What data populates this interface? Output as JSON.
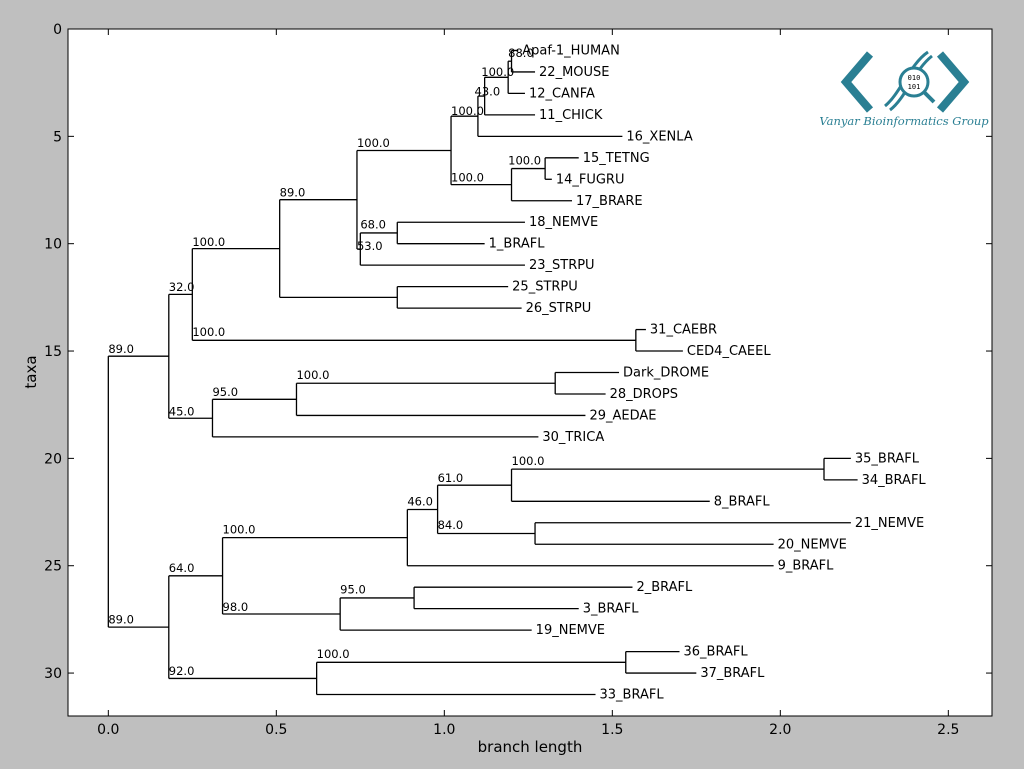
{
  "chart_data": {
    "type": "dendrogram",
    "xlabel": "branch length",
    "ylabel": "taxa",
    "xlim": [
      -0.12,
      2.63
    ],
    "ylim": [
      32,
      0
    ],
    "xticks": [
      "0.0",
      "0.5",
      "1.0",
      "1.5",
      "2.0",
      "2.5"
    ],
    "yticks": [
      "0",
      "5",
      "10",
      "15",
      "20",
      "25",
      "30"
    ],
    "xtick_values": [
      0,
      0.5,
      1.0,
      1.5,
      2.0,
      2.5
    ],
    "ytick_values": [
      0,
      5,
      10,
      15,
      20,
      25,
      30
    ],
    "leaves": [
      {
        "name": "Apaf-1_HUMAN",
        "x": 1.22,
        "y": 1
      },
      {
        "name": "22_MOUSE",
        "x": 1.27,
        "y": 2
      },
      {
        "name": "12_CANFA",
        "x": 1.24,
        "y": 3
      },
      {
        "name": "11_CHICK",
        "x": 1.27,
        "y": 4
      },
      {
        "name": "16_XENLA",
        "x": 1.53,
        "y": 5
      },
      {
        "name": "15_TETNG",
        "x": 1.4,
        "y": 6
      },
      {
        "name": "14_FUGRU",
        "x": 1.32,
        "y": 7
      },
      {
        "name": "17_BRARE",
        "x": 1.38,
        "y": 8
      },
      {
        "name": "18_NEMVE",
        "x": 1.24,
        "y": 9
      },
      {
        "name": "1_BRAFL",
        "x": 1.12,
        "y": 10
      },
      {
        "name": "23_STRPU",
        "x": 1.24,
        "y": 11
      },
      {
        "name": "25_STRPU",
        "x": 1.19,
        "y": 12
      },
      {
        "name": "26_STRPU",
        "x": 1.23,
        "y": 13
      },
      {
        "name": "31_CAEBR",
        "x": 1.6,
        "y": 14
      },
      {
        "name": "CED4_CAEEL",
        "x": 1.71,
        "y": 15
      },
      {
        "name": "Dark_DROME",
        "x": 1.52,
        "y": 16
      },
      {
        "name": "28_DROPS",
        "x": 1.48,
        "y": 17
      },
      {
        "name": "29_AEDAE",
        "x": 1.42,
        "y": 18
      },
      {
        "name": "30_TRICA",
        "x": 1.28,
        "y": 19
      },
      {
        "name": "35_BRAFL",
        "x": 2.21,
        "y": 20
      },
      {
        "name": "34_BRAFL",
        "x": 2.23,
        "y": 21
      },
      {
        "name": "8_BRAFL",
        "x": 1.79,
        "y": 22
      },
      {
        "name": "21_NEMVE",
        "x": 2.21,
        "y": 23
      },
      {
        "name": "20_NEMVE",
        "x": 1.98,
        "y": 24
      },
      {
        "name": "9_BRAFL",
        "x": 1.98,
        "y": 25
      },
      {
        "name": "2_BRAFL",
        "x": 1.56,
        "y": 26
      },
      {
        "name": "3_BRAFL",
        "x": 1.4,
        "y": 27
      },
      {
        "name": "19_NEMVE",
        "x": 1.26,
        "y": 28
      },
      {
        "name": "36_BRAFL",
        "x": 1.7,
        "y": 29
      },
      {
        "name": "37_BRAFL",
        "x": 1.75,
        "y": 30
      },
      {
        "name": "33_BRAFL",
        "x": 1.45,
        "y": 31
      }
    ],
    "nodes": [
      {
        "id": "n1",
        "x": 1.2,
        "y1": 1,
        "y2": 2,
        "label": "88.0",
        "lx": 1.19,
        "ly": 1.3
      },
      {
        "id": "n2",
        "x": 1.19,
        "y1": 1.5,
        "y2": 3,
        "label": "100.0",
        "lx": 1.11,
        "ly": 2.2
      },
      {
        "id": "n3",
        "x": 1.12,
        "y1": 2.25,
        "y2": 4,
        "label": "43.0",
        "lx": 1.09,
        "ly": 3.1
      },
      {
        "id": "n4",
        "x": 1.1,
        "y1": 3.125,
        "y2": 5,
        "label": "100.0",
        "lx": 1.02,
        "ly": 4.0
      },
      {
        "id": "n5",
        "x": 1.3,
        "y1": 6,
        "y2": 7,
        "label": "",
        "lx": 0,
        "ly": 0
      },
      {
        "id": "n6",
        "x": 1.2,
        "y1": 6.5,
        "y2": 8,
        "label": "100.0",
        "lx": 1.19,
        "ly": 6.3
      },
      {
        "id": "n7",
        "x": 1.02,
        "y1": 4.06,
        "y2": 7.25,
        "label": "100.0",
        "lx": 1.02,
        "ly": 7.1
      },
      {
        "id": "n8",
        "x": 0.86,
        "y1": 9,
        "y2": 10,
        "label": "68.0",
        "lx": 0.75,
        "ly": 9.3
      },
      {
        "id": "n9",
        "x": 0.75,
        "y1": 9.5,
        "y2": 11,
        "label": "53.0",
        "lx": 0.74,
        "ly": 10.3
      },
      {
        "id": "n10",
        "x": 0.74,
        "y1": 5.66,
        "y2": 10.25,
        "label": "100.0",
        "lx": 0.74,
        "ly": 5.5
      },
      {
        "id": "n11",
        "x": 0.86,
        "y1": 12,
        "y2": 13,
        "label": "",
        "lx": 0,
        "ly": 0
      },
      {
        "id": "n12",
        "x": 0.51,
        "y1": 7.95,
        "y2": 12.5,
        "label": "89.0",
        "lx": 0.51,
        "ly": 7.8
      },
      {
        "id": "n13",
        "x": 1.57,
        "y1": 14,
        "y2": 15,
        "label": "",
        "lx": 0,
        "ly": 0
      },
      {
        "id": "n14",
        "x": 0.25,
        "y1": 10.23,
        "y2": 14.5,
        "label": "100.0",
        "lx": 0.25,
        "ly": 10.1
      },
      {
        "id": "n15",
        "x": 0.25,
        "y1": 14.5,
        "y2": 14.5,
        "label": "100.0",
        "lx": 0.25,
        "ly": 14.3
      },
      {
        "id": "n16",
        "x": 1.33,
        "y1": 16,
        "y2": 17,
        "label": "",
        "lx": 0,
        "ly": 0
      },
      {
        "id": "n17",
        "x": 0.56,
        "y1": 16.5,
        "y2": 18,
        "label": "100.0",
        "lx": 0.56,
        "ly": 16.3
      },
      {
        "id": "n18",
        "x": 0.31,
        "y1": 17.25,
        "y2": 19,
        "label": "95.0",
        "lx": 0.31,
        "ly": 17.1
      },
      {
        "id": "n19",
        "x": 0.18,
        "y1": 12.36,
        "y2": 18.13,
        "label": "32.0",
        "lx": 0.18,
        "ly": 12.2
      },
      {
        "id": "n19b",
        "x": 0.18,
        "y1": 18.13,
        "y2": 18.13,
        "label": "45.0",
        "lx": 0.18,
        "ly": 18.0
      },
      {
        "id": "n20",
        "x": 2.13,
        "y1": 20,
        "y2": 21,
        "label": "",
        "lx": 0,
        "ly": 0
      },
      {
        "id": "n21",
        "x": 1.2,
        "y1": 20.5,
        "y2": 22,
        "label": "100.0",
        "lx": 1.2,
        "ly": 20.3
      },
      {
        "id": "n22",
        "x": 1.27,
        "y1": 23,
        "y2": 24,
        "label": "",
        "lx": 0,
        "ly": 0
      },
      {
        "id": "n23",
        "x": 0.98,
        "y1": 21.25,
        "y2": 23.5,
        "label": "61.0",
        "lx": 0.98,
        "ly": 21.1
      },
      {
        "id": "n23b",
        "x": 0.98,
        "y1": 23.5,
        "y2": 23.5,
        "label": "84.0",
        "lx": 0.98,
        "ly": 23.3
      },
      {
        "id": "n24",
        "x": 0.89,
        "y1": 22.38,
        "y2": 25,
        "label": "46.0",
        "lx": 0.89,
        "ly": 22.2
      },
      {
        "id": "n25",
        "x": 0.91,
        "y1": 26,
        "y2": 27,
        "label": "",
        "lx": 0,
        "ly": 0
      },
      {
        "id": "n26",
        "x": 0.69,
        "y1": 26.5,
        "y2": 28,
        "label": "95.0",
        "lx": 0.69,
        "ly": 26.3
      },
      {
        "id": "n27",
        "x": 0.34,
        "y1": 23.69,
        "y2": 27.25,
        "label": "100.0",
        "lx": 0.34,
        "ly": 23.5
      },
      {
        "id": "n27b",
        "x": 0.34,
        "y1": 27.25,
        "y2": 27.25,
        "label": "98.0",
        "lx": 0.34,
        "ly": 27.1
      },
      {
        "id": "n28",
        "x": 1.54,
        "y1": 29,
        "y2": 30,
        "label": "",
        "lx": 0,
        "ly": 0
      },
      {
        "id": "n29",
        "x": 0.62,
        "y1": 29.5,
        "y2": 31,
        "label": "100.0",
        "lx": 0.62,
        "ly": 29.3
      },
      {
        "id": "n30",
        "x": 0.18,
        "y1": 25.47,
        "y2": 30.25,
        "label": "64.0",
        "lx": 0.18,
        "ly": 25.3
      },
      {
        "id": "n30b",
        "x": 0.18,
        "y1": 30.25,
        "y2": 30.25,
        "label": "92.0",
        "lx": 0.18,
        "ly": 30.1
      },
      {
        "id": "n31",
        "x": 0,
        "y1": 15.24,
        "y2": 27.86,
        "label": "89.0",
        "lx": 0,
        "ly": 15.1
      },
      {
        "id": "n31b",
        "x": 0,
        "y1": 27.86,
        "y2": 27.86,
        "label": "89.0",
        "lx": 0,
        "ly": 27.7
      }
    ],
    "links": [
      {
        "px": 1.2,
        "cx": 1.22,
        "y": 1
      },
      {
        "px": 1.2,
        "cx": 1.27,
        "y": 2
      },
      {
        "px": 1.19,
        "cx": 1.2,
        "y": 1.5
      },
      {
        "px": 1.19,
        "cx": 1.24,
        "y": 3
      },
      {
        "px": 1.12,
        "cx": 1.19,
        "y": 2.25
      },
      {
        "px": 1.12,
        "cx": 1.27,
        "y": 4
      },
      {
        "px": 1.1,
        "cx": 1.12,
        "y": 3.125
      },
      {
        "px": 1.1,
        "cx": 1.53,
        "y": 5
      },
      {
        "px": 1.3,
        "cx": 1.4,
        "y": 6
      },
      {
        "px": 1.3,
        "cx": 1.32,
        "y": 7
      },
      {
        "px": 1.2,
        "cx": 1.3,
        "y": 6.5
      },
      {
        "px": 1.2,
        "cx": 1.38,
        "y": 8
      },
      {
        "px": 1.02,
        "cx": 1.1,
        "y": 4.06
      },
      {
        "px": 1.02,
        "cx": 1.2,
        "y": 7.25
      },
      {
        "px": 0.86,
        "cx": 1.24,
        "y": 9
      },
      {
        "px": 0.86,
        "cx": 1.12,
        "y": 10
      },
      {
        "px": 0.75,
        "cx": 0.86,
        "y": 9.5
      },
      {
        "px": 0.75,
        "cx": 1.24,
        "y": 11
      },
      {
        "px": 0.74,
        "cx": 1.02,
        "y": 5.66
      },
      {
        "px": 0.74,
        "cx": 0.75,
        "y": 10.25
      },
      {
        "px": 0.86,
        "cx": 1.19,
        "y": 12
      },
      {
        "px": 0.86,
        "cx": 1.23,
        "y": 13
      },
      {
        "px": 0.51,
        "cx": 0.74,
        "y": 7.95
      },
      {
        "px": 0.51,
        "cx": 0.86,
        "y": 12.5
      },
      {
        "px": 1.57,
        "cx": 1.6,
        "y": 14
      },
      {
        "px": 1.57,
        "cx": 1.71,
        "y": 15
      },
      {
        "px": 0.25,
        "cx": 0.51,
        "y": 10.23
      },
      {
        "px": 0.25,
        "cx": 1.57,
        "y": 14.5
      },
      {
        "px": 1.33,
        "cx": 1.52,
        "y": 16
      },
      {
        "px": 1.33,
        "cx": 1.48,
        "y": 17
      },
      {
        "px": 0.56,
        "cx": 1.33,
        "y": 16.5
      },
      {
        "px": 0.56,
        "cx": 1.42,
        "y": 18
      },
      {
        "px": 0.31,
        "cx": 0.56,
        "y": 17.25
      },
      {
        "px": 0.31,
        "cx": 1.28,
        "y": 19
      },
      {
        "px": 0.18,
        "cx": 0.25,
        "y": 12.36
      },
      {
        "px": 0.18,
        "cx": 0.31,
        "y": 18.13
      },
      {
        "px": 2.13,
        "cx": 2.21,
        "y": 20
      },
      {
        "px": 2.13,
        "cx": 2.23,
        "y": 21
      },
      {
        "px": 1.2,
        "cx": 2.13,
        "y": 20.5
      },
      {
        "px": 1.2,
        "cx": 1.79,
        "y": 22
      },
      {
        "px": 1.27,
        "cx": 2.21,
        "y": 23
      },
      {
        "px": 1.27,
        "cx": 1.98,
        "y": 24
      },
      {
        "px": 0.98,
        "cx": 1.2,
        "y": 21.25
      },
      {
        "px": 0.98,
        "cx": 1.27,
        "y": 23.5
      },
      {
        "px": 0.89,
        "cx": 0.98,
        "y": 22.38
      },
      {
        "px": 0.89,
        "cx": 1.98,
        "y": 25
      },
      {
        "px": 0.91,
        "cx": 1.56,
        "y": 26
      },
      {
        "px": 0.91,
        "cx": 1.4,
        "y": 27
      },
      {
        "px": 0.69,
        "cx": 0.91,
        "y": 26.5
      },
      {
        "px": 0.69,
        "cx": 1.26,
        "y": 28
      },
      {
        "px": 0.34,
        "cx": 0.89,
        "y": 23.69
      },
      {
        "px": 0.34,
        "cx": 0.69,
        "y": 27.25
      },
      {
        "px": 1.54,
        "cx": 1.7,
        "y": 29
      },
      {
        "px": 1.54,
        "cx": 1.75,
        "y": 30
      },
      {
        "px": 0.62,
        "cx": 1.54,
        "y": 29.5
      },
      {
        "px": 0.62,
        "cx": 1.45,
        "y": 31
      },
      {
        "px": 0.18,
        "cx": 0.34,
        "y": 25.47
      },
      {
        "px": 0.18,
        "cx": 0.62,
        "y": 30.25
      },
      {
        "px": 0,
        "cx": 0.18,
        "y": 15.24
      },
      {
        "px": 0,
        "cx": 0.18,
        "y": 27.86
      }
    ]
  },
  "logo": {
    "text": "Vanyar Bioinformatics Group",
    "glyph_top": "010",
    "glyph_bottom": "101",
    "color": "#2a7f93"
  },
  "colors": {
    "figure_bg": "#bfbfbf",
    "axes_bg": "#ffffff",
    "line": "#000000"
  }
}
